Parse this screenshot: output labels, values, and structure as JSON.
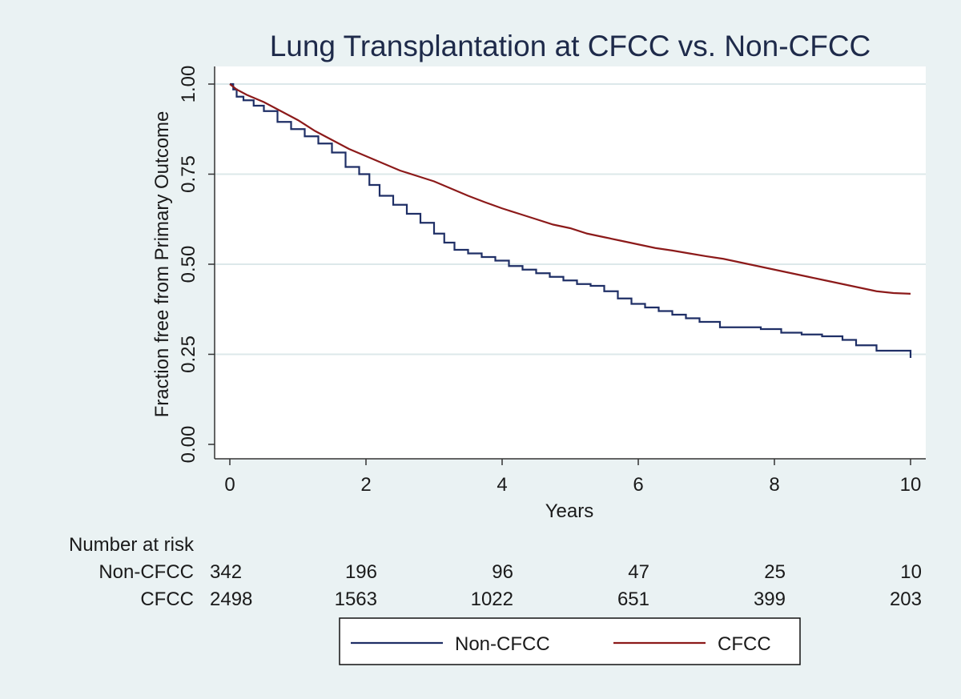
{
  "chart_data": {
    "type": "line",
    "title": "Lung Transplantation at CFCC vs. Non-CFCC",
    "xlabel": "Years",
    "ylabel": "Fraction free from Primary Outcome",
    "xlim": [
      0,
      10
    ],
    "ylim": [
      0,
      1
    ],
    "xticks": [
      0,
      2,
      4,
      6,
      8,
      10
    ],
    "xtick_labels": [
      "0",
      "2",
      "4",
      "6",
      "8",
      "10"
    ],
    "yticks": [
      0,
      0.25,
      0.5,
      0.75,
      1
    ],
    "ytick_labels": [
      "0.00",
      "0.25",
      "0.50",
      "0.75",
      "1.00"
    ],
    "grid": "horizontal",
    "series": [
      {
        "name": "Non-CFCC",
        "color": "#1f2f66",
        "step": true,
        "x": [
          0,
          0.05,
          0.1,
          0.2,
          0.35,
          0.5,
          0.7,
          0.9,
          1.1,
          1.3,
          1.5,
          1.7,
          1.9,
          2.05,
          2.2,
          2.4,
          2.6,
          2.8,
          3.0,
          3.15,
          3.3,
          3.5,
          3.7,
          3.9,
          4.1,
          4.3,
          4.5,
          4.7,
          4.9,
          5.1,
          5.3,
          5.5,
          5.7,
          5.9,
          6.1,
          6.3,
          6.5,
          6.7,
          6.9,
          7.2,
          7.5,
          7.8,
          8.1,
          8.4,
          8.7,
          9.0,
          9.2,
          9.5,
          9.8,
          10.0
        ],
        "y": [
          1.0,
          0.985,
          0.965,
          0.955,
          0.94,
          0.925,
          0.895,
          0.875,
          0.855,
          0.835,
          0.81,
          0.77,
          0.75,
          0.72,
          0.69,
          0.665,
          0.64,
          0.615,
          0.585,
          0.56,
          0.54,
          0.53,
          0.52,
          0.51,
          0.495,
          0.485,
          0.475,
          0.465,
          0.455,
          0.445,
          0.44,
          0.425,
          0.405,
          0.39,
          0.38,
          0.37,
          0.36,
          0.35,
          0.34,
          0.325,
          0.325,
          0.32,
          0.31,
          0.305,
          0.3,
          0.29,
          0.275,
          0.26,
          0.26,
          0.24
        ]
      },
      {
        "name": "CFCC",
        "color": "#8c1a1a",
        "step": false,
        "x": [
          0,
          0.1,
          0.25,
          0.5,
          0.75,
          1.0,
          1.25,
          1.5,
          1.75,
          2.0,
          2.25,
          2.5,
          2.75,
          3.0,
          3.25,
          3.5,
          3.75,
          4.0,
          4.25,
          4.5,
          4.75,
          5.0,
          5.25,
          5.5,
          5.75,
          6.0,
          6.25,
          6.5,
          6.75,
          7.0,
          7.25,
          7.5,
          7.75,
          8.0,
          8.25,
          8.5,
          8.75,
          9.0,
          9.25,
          9.5,
          9.75,
          10.0
        ],
        "y": [
          1.0,
          0.985,
          0.97,
          0.95,
          0.925,
          0.9,
          0.87,
          0.845,
          0.82,
          0.8,
          0.78,
          0.76,
          0.745,
          0.73,
          0.71,
          0.69,
          0.672,
          0.655,
          0.64,
          0.625,
          0.61,
          0.6,
          0.585,
          0.575,
          0.565,
          0.555,
          0.545,
          0.538,
          0.53,
          0.522,
          0.515,
          0.505,
          0.495,
          0.485,
          0.475,
          0.465,
          0.455,
          0.445,
          0.435,
          0.425,
          0.42,
          0.418
        ]
      }
    ],
    "risk_table": {
      "heading": "Number at risk",
      "times": [
        0,
        2,
        4,
        6,
        8,
        10
      ],
      "rows": [
        {
          "label": "Non-CFCC",
          "values": [
            "342",
            "196",
            "96",
            "47",
            "25",
            "10"
          ]
        },
        {
          "label": "CFCC",
          "values": [
            "2498",
            "1563",
            "1022",
            "651",
            "399",
            "203"
          ]
        }
      ]
    },
    "legend": {
      "position": "bottom",
      "entries": [
        {
          "label": "Non-CFCC",
          "color": "#1f2f66"
        },
        {
          "label": "CFCC",
          "color": "#8c1a1a"
        }
      ]
    }
  }
}
